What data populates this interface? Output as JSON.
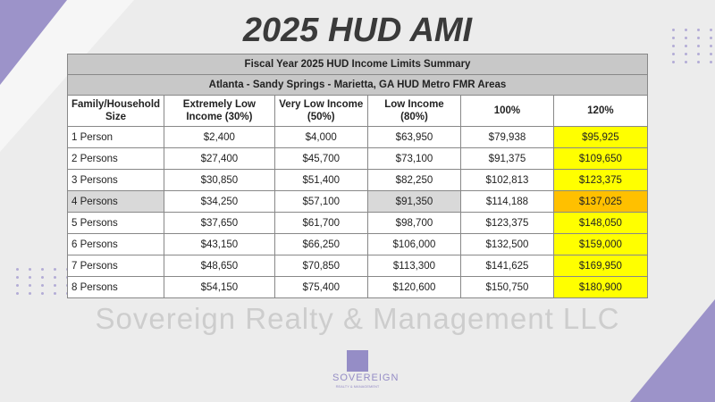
{
  "title": "2025 HUD AMI",
  "table": {
    "title": "Fiscal Year 2025 HUD Income Limits Summary",
    "subtitle": "Atlanta - Sandy Springs - Marietta, GA HUD Metro FMR Areas",
    "headers": [
      "Family/Household Size",
      "Extremely Low Income (30%)",
      "Very Low Income (50%)",
      "Low Income (80%)",
      "100%",
      "120%"
    ],
    "rows": [
      [
        "1 Person",
        "$2,400",
        "$4,000",
        "$63,950",
        "$79,938",
        "$95,925"
      ],
      [
        "2 Persons",
        "$27,400",
        "$45,700",
        "$73,100",
        "$91,375",
        "$109,650"
      ],
      [
        "3 Persons",
        "$30,850",
        "$51,400",
        "$82,250",
        "$102,813",
        "$123,375"
      ],
      [
        "4 Persons",
        "$34,250",
        "$57,100",
        "$91,350",
        "$114,188",
        "$137,025"
      ],
      [
        "5 Persons",
        "$37,650",
        "$61,700",
        "$98,700",
        "$123,375",
        "$148,050"
      ],
      [
        "6 Persons",
        "$43,150",
        "$66,250",
        "$106,000",
        "$132,500",
        "$159,000"
      ],
      [
        "7 Persons",
        "$48,650",
        "$70,850",
        "$113,300",
        "$141,625",
        "$169,950"
      ],
      [
        "8 Persons",
        "$54,150",
        "$75,400",
        "$120,600",
        "$150,750",
        "$180,900"
      ]
    ]
  },
  "watermark": "Sovereign Realty & Management LLC",
  "logo": {
    "name": "SOVEREIGN",
    "tagline": "REALTY & MANAGEMENT"
  },
  "colors": {
    "accent": "#9c93c9",
    "highlight": "#ffff00",
    "highlight_row": "#ffc000"
  }
}
